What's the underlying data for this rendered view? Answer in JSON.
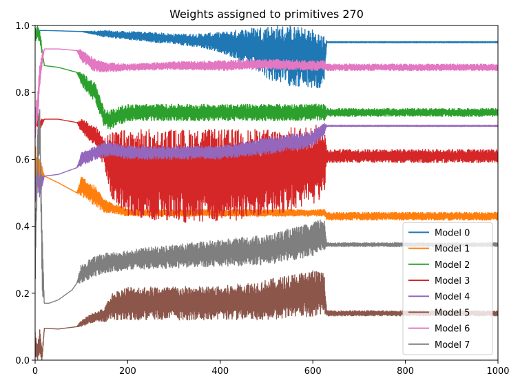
{
  "chart_data": {
    "type": "line",
    "title": "Weights assigned to primitives 270",
    "xlabel": "",
    "ylabel": "",
    "xlim": [
      0,
      1000
    ],
    "ylim": [
      0.0,
      1.0
    ],
    "xticks": [
      0,
      200,
      400,
      600,
      800,
      1000
    ],
    "yticks": [
      0.0,
      0.2,
      0.4,
      0.6,
      0.8,
      1.0
    ],
    "ytick_labels": [
      "0.0",
      "0.2",
      "0.4",
      "0.6",
      "0.8",
      "1.0"
    ],
    "grid": false,
    "legend_position": "lower-right",
    "series": [
      {
        "name": "Model 0",
        "color": "#1f77b4",
        "x": [
          0,
          5,
          10,
          20,
          50,
          100,
          150,
          200,
          250,
          300,
          350,
          400,
          450,
          500,
          550,
          600,
          625,
          630,
          700,
          800,
          900,
          1000
        ],
        "y": [
          0.96,
          0.99,
          0.985,
          0.985,
          0.984,
          0.982,
          0.975,
          0.97,
          0.965,
          0.96,
          0.955,
          0.95,
          0.94,
          0.92,
          0.91,
          0.9,
          0.89,
          0.95,
          0.95,
          0.95,
          0.95,
          0.95
        ],
        "noise": [
          0,
          0,
          0,
          0,
          0,
          0,
          0.01,
          0.012,
          0.015,
          0.015,
          0.02,
          0.03,
          0.05,
          0.08,
          0.09,
          0.09,
          0.08,
          0.002,
          0.002,
          0.002,
          0.002,
          0.002
        ]
      },
      {
        "name": "Model 1",
        "color": "#ff7f0e",
        "x": [
          0,
          5,
          10,
          20,
          50,
          90,
          100,
          130,
          150,
          180,
          200,
          250,
          300,
          400,
          500,
          600,
          625,
          630,
          700,
          800,
          900,
          1000
        ],
        "y": [
          0.6,
          0.55,
          0.58,
          0.55,
          0.53,
          0.5,
          0.52,
          0.49,
          0.46,
          0.45,
          0.44,
          0.44,
          0.44,
          0.44,
          0.44,
          0.44,
          0.44,
          0.43,
          0.43,
          0.43,
          0.43,
          0.43
        ],
        "noise": [
          0.05,
          0.05,
          0.03,
          0,
          0,
          0,
          0.03,
          0.03,
          0.02,
          0.015,
          0.01,
          0.01,
          0.01,
          0.01,
          0.01,
          0.01,
          0.01,
          0.012,
          0.012,
          0.012,
          0.012,
          0.012
        ]
      },
      {
        "name": "Model 2",
        "color": "#2ca02c",
        "x": [
          0,
          5,
          10,
          20,
          50,
          90,
          100,
          130,
          150,
          165,
          200,
          300,
          400,
          500,
          600,
          625,
          630,
          700,
          800,
          900,
          1000
        ],
        "y": [
          0.97,
          0.98,
          0.97,
          0.88,
          0.875,
          0.86,
          0.84,
          0.8,
          0.72,
          0.72,
          0.74,
          0.74,
          0.74,
          0.74,
          0.74,
          0.74,
          0.74,
          0.74,
          0.74,
          0.74,
          0.74
        ],
        "noise": [
          0.02,
          0.02,
          0.02,
          0,
          0,
          0,
          0.02,
          0.03,
          0.03,
          0.03,
          0.025,
          0.025,
          0.025,
          0.025,
          0.025,
          0.025,
          0.012,
          0.012,
          0.012,
          0.012,
          0.012
        ]
      },
      {
        "name": "Model 3",
        "color": "#d62728",
        "x": [
          0,
          5,
          10,
          20,
          50,
          90,
          100,
          130,
          150,
          165,
          200,
          300,
          400,
          500,
          600,
          625,
          630,
          700,
          800,
          900,
          1000
        ],
        "y": [
          0.7,
          0.72,
          0.7,
          0.72,
          0.72,
          0.71,
          0.7,
          0.67,
          0.62,
          0.58,
          0.56,
          0.55,
          0.55,
          0.56,
          0.58,
          0.6,
          0.61,
          0.61,
          0.61,
          0.61,
          0.61
        ],
        "noise": [
          0.02,
          0.02,
          0.02,
          0,
          0,
          0,
          0.02,
          0.03,
          0.05,
          0.1,
          0.13,
          0.14,
          0.14,
          0.13,
          0.12,
          0.11,
          0.02,
          0.02,
          0.02,
          0.02,
          0.02
        ]
      },
      {
        "name": "Model 4",
        "color": "#9467bd",
        "x": [
          0,
          5,
          10,
          20,
          50,
          90,
          100,
          130,
          150,
          165,
          200,
          300,
          400,
          500,
          600,
          625,
          630,
          700,
          800,
          900,
          1000
        ],
        "y": [
          0.5,
          0.55,
          0.52,
          0.55,
          0.555,
          0.575,
          0.6,
          0.62,
          0.63,
          0.63,
          0.62,
          0.62,
          0.62,
          0.64,
          0.66,
          0.69,
          0.7,
          0.7,
          0.7,
          0.7,
          0.7
        ],
        "noise": [
          0.05,
          0.04,
          0.04,
          0,
          0,
          0,
          0.02,
          0.02,
          0.025,
          0.02,
          0.02,
          0.02,
          0.02,
          0.025,
          0.025,
          0.02,
          0.002,
          0.002,
          0.002,
          0.002,
          0.002
        ]
      },
      {
        "name": "Model 5",
        "color": "#8c564b",
        "x": [
          0,
          5,
          10,
          15,
          20,
          50,
          90,
          100,
          130,
          150,
          165,
          200,
          300,
          400,
          500,
          600,
          625,
          630,
          700,
          800,
          900,
          1000
        ],
        "y": [
          0.05,
          0.02,
          0.06,
          0.01,
          0.095,
          0.093,
          0.1,
          0.11,
          0.13,
          0.135,
          0.16,
          0.17,
          0.17,
          0.17,
          0.18,
          0.2,
          0.2,
          0.14,
          0.14,
          0.14,
          0.14,
          0.14
        ],
        "noise": [
          0.04,
          0.02,
          0.04,
          0.02,
          0,
          0,
          0,
          0.01,
          0.015,
          0.02,
          0.04,
          0.05,
          0.05,
          0.05,
          0.06,
          0.07,
          0.06,
          0.008,
          0.008,
          0.008,
          0.008,
          0.008
        ]
      },
      {
        "name": "Model 6",
        "color": "#e377c2",
        "x": [
          0,
          5,
          10,
          15,
          20,
          50,
          90,
          100,
          130,
          150,
          200,
          300,
          400,
          500,
          600,
          625,
          630,
          700,
          800,
          900,
          1000
        ],
        "y": [
          0.7,
          0.75,
          0.85,
          0.9,
          0.93,
          0.93,
          0.925,
          0.91,
          0.88,
          0.875,
          0.875,
          0.88,
          0.88,
          0.885,
          0.88,
          0.88,
          0.875,
          0.875,
          0.875,
          0.875,
          0.875
        ],
        "noise": [
          0.05,
          0.05,
          0.05,
          0.02,
          0,
          0,
          0,
          0.02,
          0.02,
          0.015,
          0.01,
          0.012,
          0.015,
          0.015,
          0.015,
          0.015,
          0.01,
          0.01,
          0.01,
          0.01,
          0.01
        ]
      },
      {
        "name": "Model 7",
        "color": "#7f7f7f",
        "x": [
          0,
          5,
          10,
          15,
          20,
          30,
          50,
          80,
          90,
          100,
          130,
          150,
          200,
          300,
          400,
          500,
          600,
          625,
          630,
          700,
          800,
          900,
          1000
        ],
        "y": [
          0.3,
          0.6,
          0.7,
          0.3,
          0.17,
          0.17,
          0.18,
          0.21,
          0.23,
          0.26,
          0.28,
          0.29,
          0.3,
          0.31,
          0.32,
          0.33,
          0.36,
          0.38,
          0.345,
          0.345,
          0.345,
          0.345,
          0.345
        ],
        "noise": [
          0.1,
          0.08,
          0.08,
          0.1,
          0,
          0,
          0,
          0,
          0,
          0.03,
          0.03,
          0.03,
          0.03,
          0.035,
          0.04,
          0.045,
          0.05,
          0.05,
          0.006,
          0.006,
          0.006,
          0.006,
          0.006
        ]
      }
    ]
  }
}
